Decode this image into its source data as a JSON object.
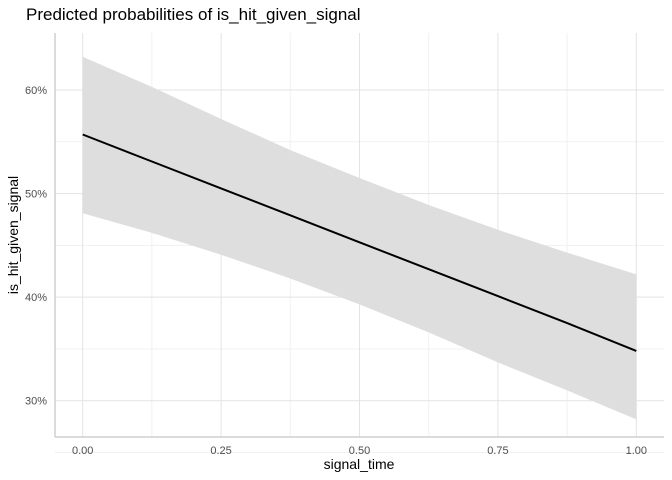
{
  "chart_data": {
    "type": "line",
    "title": "Predicted probabilities of is_hit_given_signal",
    "xlabel": "signal_time",
    "ylabel": "is_hit_given_signal",
    "xlim": [
      -0.05,
      1.05
    ],
    "ylim": [
      0.265,
      0.655
    ],
    "x_ticks": [
      0,
      0.25,
      0.5,
      0.75,
      1
    ],
    "x_tick_labels": [
      "0.00",
      "0.25",
      "0.50",
      "0.75",
      "1.00"
    ],
    "y_ticks": [
      0.3,
      0.4,
      0.5,
      0.6
    ],
    "y_tick_labels": [
      "30%",
      "40%",
      "50%",
      "60%"
    ],
    "grid": true,
    "colors": {
      "line": "#000000",
      "band": "#dedede",
      "grid_major": "#e3e3e3",
      "grid_minor": "#f1f1f1",
      "axis": "#cfcfcf"
    },
    "series": [
      {
        "x": [
          0,
          0.125,
          0.25,
          0.375,
          0.5,
          0.625,
          0.75,
          0.875,
          1
        ],
        "y": [
          0.557,
          0.531,
          0.505,
          0.479,
          0.453,
          0.427,
          0.401,
          0.375,
          0.348
        ],
        "ci_low": [
          0.481,
          0.462,
          0.441,
          0.418,
          0.393,
          0.366,
          0.337,
          0.31,
          0.282
        ],
        "ci_high": [
          0.632,
          0.603,
          0.572,
          0.542,
          0.515,
          0.489,
          0.465,
          0.443,
          0.422
        ]
      }
    ]
  }
}
